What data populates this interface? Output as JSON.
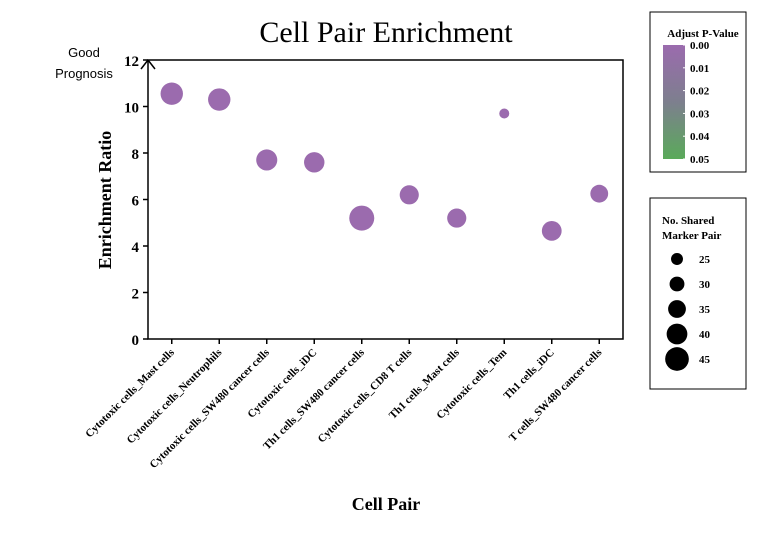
{
  "chart_data": {
    "type": "scatter",
    "title": "Cell Pair Enrichment",
    "xlabel": "Cell Pair",
    "ylabel": "Enrichment Ratio",
    "annotation": "Good\nPrognosis",
    "ylim": [
      0,
      12
    ],
    "yticks": [
      0,
      2,
      4,
      6,
      8,
      10,
      12
    ],
    "grid": false,
    "categories": [
      "Cytotoxic cells_Mast cells",
      "Cytotoxic cells_Neutrophils",
      "Cytotoxic cells_SW480 cancer cells",
      "Cytotoxic cells_iDC",
      "Th1 cells_SW480 cancer cells",
      "Cytotoxic cells_CD8 T cells",
      "Th1 cells_Mast cells",
      "Cytotoxic cells_Tem",
      "Th1 cells_iDC",
      "T cells_SW480 cancer cells"
    ],
    "points": [
      {
        "x": "Cytotoxic cells_Mast cells",
        "y": 10.55,
        "shared_pairs": 39,
        "adj_p": 0.0
      },
      {
        "x": "Cytotoxic cells_Neutrophils",
        "y": 10.3,
        "shared_pairs": 39,
        "adj_p": 0.0
      },
      {
        "x": "Cytotoxic cells_SW480 cancer cells",
        "y": 7.7,
        "shared_pairs": 37,
        "adj_p": 0.0
      },
      {
        "x": "Cytotoxic cells_iDC",
        "y": 7.6,
        "shared_pairs": 36,
        "adj_p": 0.0
      },
      {
        "x": "Th1 cells_SW480 cancer cells",
        "y": 5.2,
        "shared_pairs": 43,
        "adj_p": 0.0
      },
      {
        "x": "Cytotoxic cells_CD8 T cells",
        "y": 6.2,
        "shared_pairs": 34,
        "adj_p": 0.0
      },
      {
        "x": "Th1 cells_Mast cells",
        "y": 5.2,
        "shared_pairs": 34,
        "adj_p": 0.0
      },
      {
        "x": "Cytotoxic cells_Tem",
        "y": 9.7,
        "shared_pairs": 20,
        "adj_p": 0.0
      },
      {
        "x": "Th1 cells_iDC",
        "y": 4.65,
        "shared_pairs": 35,
        "adj_p": 0.0
      },
      {
        "x": "T cells_SW480 cancer cells",
        "y": 6.25,
        "shared_pairs": 32,
        "adj_p": 0.0
      }
    ],
    "color_legend": {
      "title": "Adjust P-Value",
      "ticks": [
        "0.00",
        "0.01",
        "0.02",
        "0.03",
        "0.04",
        "0.05"
      ],
      "range": [
        0.0,
        0.05
      ],
      "color_low": "#9b6bae",
      "color_high": "#5aaa5a"
    },
    "size_legend": {
      "title_line1": "No. Shared",
      "title_line2": "Marker Pair",
      "values": [
        25,
        30,
        35,
        40,
        45
      ],
      "labels": [
        "25",
        "30",
        "35",
        "40",
        "45"
      ]
    },
    "point_color": "#9b6bae"
  }
}
